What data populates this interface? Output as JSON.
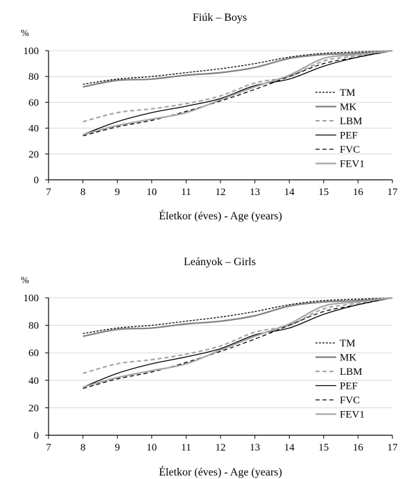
{
  "chart_data": [
    {
      "type": "line",
      "title": "Fiúk – Boys",
      "ylabel": "%",
      "xlabel": "Életkor (éves) - Age (years)",
      "xlim": [
        7,
        17
      ],
      "ylim": [
        0,
        100
      ],
      "xticks": [
        7,
        8,
        9,
        10,
        11,
        12,
        13,
        14,
        15,
        16,
        17
      ],
      "yticks": [
        0,
        20,
        40,
        60,
        80,
        100
      ],
      "grid": "horizontal",
      "legend": "right",
      "series": [
        {
          "name": "TM",
          "color": "#000000",
          "style": "dotted",
          "x": [
            8,
            9,
            10,
            11,
            12,
            13,
            14,
            15,
            16,
            17
          ],
          "values": [
            74,
            78,
            80,
            83,
            86,
            90,
            95,
            98,
            99,
            100
          ]
        },
        {
          "name": "MK",
          "color": "#808080",
          "style": "solid",
          "x": [
            8,
            9,
            10,
            11,
            12,
            13,
            14,
            15,
            16,
            17
          ],
          "values": [
            72,
            77,
            78,
            81,
            83,
            87,
            94,
            97,
            98,
            100
          ]
        },
        {
          "name": "LBM",
          "color": "#a6a6a6",
          "style": "dashed",
          "x": [
            8,
            9,
            10,
            11,
            12,
            13,
            14,
            15,
            16,
            17
          ],
          "values": [
            45,
            52,
            55,
            59,
            65,
            75,
            80,
            92,
            96,
            100
          ]
        },
        {
          "name": "PEF",
          "color": "#000000",
          "style": "solid",
          "x": [
            8,
            9,
            10,
            11,
            12,
            13,
            14,
            15,
            16,
            17
          ],
          "values": [
            35,
            45,
            52,
            57,
            63,
            73,
            78,
            88,
            95,
            100
          ]
        },
        {
          "name": "FVC",
          "color": "#000000",
          "style": "dashed",
          "x": [
            8,
            9,
            10,
            11,
            12,
            13,
            14,
            15,
            16,
            17
          ],
          "values": [
            34,
            41,
            46,
            53,
            61,
            70,
            80,
            90,
            95,
            100
          ]
        },
        {
          "name": "FEV1",
          "color": "#a6a6a6",
          "style": "solid",
          "x": [
            8,
            9,
            10,
            11,
            12,
            13,
            14,
            15,
            16,
            17
          ],
          "values": [
            35,
            42,
            47,
            52,
            62,
            72,
            81,
            94,
            97,
            100
          ]
        }
      ]
    },
    {
      "type": "line",
      "title": "Leányok – Girls",
      "ylabel": "%",
      "xlabel": "Életkor (éves) - Age (years)",
      "xlim": [
        7,
        17
      ],
      "ylim": [
        0,
        100
      ],
      "xticks": [
        7,
        8,
        9,
        10,
        11,
        12,
        13,
        14,
        15,
        16,
        17
      ],
      "yticks": [
        0,
        20,
        40,
        60,
        80,
        100
      ],
      "grid": "horizontal",
      "legend": "right",
      "series": [
        {
          "name": "TM",
          "color": "#000000",
          "style": "dotted",
          "x": [
            8,
            9,
            10,
            11,
            12,
            13,
            14,
            15,
            16,
            17
          ],
          "values": [
            74,
            78,
            80,
            83,
            86,
            90,
            95,
            98,
            99,
            100
          ]
        },
        {
          "name": "MK",
          "color": "#808080",
          "style": "solid",
          "x": [
            8,
            9,
            10,
            11,
            12,
            13,
            14,
            15,
            16,
            17
          ],
          "values": [
            72,
            77,
            78,
            81,
            83,
            87,
            94,
            97,
            98,
            100
          ]
        },
        {
          "name": "LBM",
          "color": "#a6a6a6",
          "style": "dashed",
          "x": [
            8,
            9,
            10,
            11,
            12,
            13,
            14,
            15,
            16,
            17
          ],
          "values": [
            45,
            52,
            55,
            59,
            65,
            75,
            80,
            92,
            96,
            100
          ]
        },
        {
          "name": "PEF",
          "color": "#000000",
          "style": "solid",
          "x": [
            8,
            9,
            10,
            11,
            12,
            13,
            14,
            15,
            16,
            17
          ],
          "values": [
            35,
            45,
            52,
            57,
            63,
            73,
            78,
            88,
            95,
            100
          ]
        },
        {
          "name": "FVC",
          "color": "#000000",
          "style": "dashed",
          "x": [
            8,
            9,
            10,
            11,
            12,
            13,
            14,
            15,
            16,
            17
          ],
          "values": [
            34,
            41,
            46,
            53,
            61,
            70,
            80,
            90,
            95,
            100
          ]
        },
        {
          "name": "FEV1",
          "color": "#a6a6a6",
          "style": "solid",
          "x": [
            8,
            9,
            10,
            11,
            12,
            13,
            14,
            15,
            16,
            17
          ],
          "values": [
            35,
            42,
            47,
            52,
            62,
            72,
            81,
            94,
            97,
            100
          ]
        }
      ]
    }
  ]
}
